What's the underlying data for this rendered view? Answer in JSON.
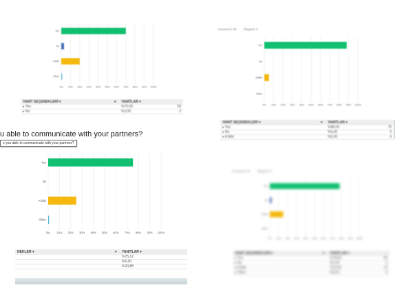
{
  "page": {
    "question_title": "u able to communicate with your partners?",
    "question_tooltip": "e you able to communicate with your partners?"
  },
  "panel_b_tabs": [
    "Answered: 85",
    "Skipped: 0"
  ],
  "panel_d_tabs": [
    "Answered: 84",
    "Skipped: 0"
  ],
  "colors": {
    "green": "#10c070",
    "blue": "#4a72b8",
    "yellow": "#f4b80e",
    "teal": "#5ab4d6",
    "grid": "#e9e9e9"
  },
  "chart_data": [
    {
      "type": "bar",
      "orientation": "horizontal",
      "categories": [
        "Yes",
        "No",
        "A little",
        "Other"
      ],
      "values": [
        70,
        3,
        20,
        1
      ],
      "xlim": [
        0,
        100
      ],
      "ticks": [
        "0%",
        "10%",
        "20%",
        "30%",
        "40%",
        "50%",
        "60%",
        "70%",
        "80%",
        "90%",
        "100%"
      ],
      "bar_colors": [
        "#10c070",
        "#4a72b8",
        "#f4b80e",
        "#5ab4d6"
      ]
    },
    {
      "type": "bar",
      "orientation": "horizontal",
      "categories": [
        "Yes",
        "No",
        "A little",
        "Other"
      ],
      "values": [
        88,
        0,
        5,
        0
      ],
      "xlim": [
        0,
        100
      ],
      "ticks": [
        "0%",
        "10%",
        "20%",
        "30%",
        "40%",
        "50%",
        "60%",
        "70%",
        "80%",
        "90%",
        "100%"
      ],
      "bar_colors": [
        "#10c070",
        "#4a72b8",
        "#f4b80e",
        "#5ab4d6"
      ]
    },
    {
      "type": "bar",
      "orientation": "horizontal",
      "categories": [
        "Yes",
        "No",
        "A little",
        "Other"
      ],
      "values": [
        75.12,
        0,
        24.88,
        0.8
      ],
      "xlim": [
        0,
        100
      ],
      "ticks": [
        "0%",
        "10%",
        "20%",
        "30%",
        "40%",
        "50%",
        "60%",
        "70%",
        "80%",
        "90%",
        "100%"
      ],
      "bar_colors": [
        "#10c070",
        "#4a72b8",
        "#f4b80e",
        "#5ab4d6"
      ]
    },
    {
      "type": "bar",
      "orientation": "horizontal",
      "categories": [
        "Yes",
        "No",
        "A little",
        "Other"
      ],
      "values": [
        78,
        2,
        15,
        0
      ],
      "xlim": [
        0,
        100
      ],
      "ticks": [
        "0%",
        "10%",
        "20%",
        "30%",
        "40%",
        "50%",
        "60%",
        "70%",
        "80%",
        "90%",
        "100%"
      ],
      "bar_colors": [
        "#10c070",
        "#4a72b8",
        "#f4b80e",
        "#5ab4d6"
      ]
    }
  ],
  "tables": [
    {
      "headers": [
        "YANIT SEÇENEKLERİ",
        "YANITLAR"
      ],
      "rows": [
        {
          "label": "Yes",
          "value": "%70,00",
          "count": "59"
        },
        {
          "label": "No",
          "value": "%3,00",
          "count": "3"
        }
      ]
    },
    {
      "headers": [
        "YANIT SEÇENEKLERİ",
        "YANITLAR"
      ],
      "rows": [
        {
          "label": "Yes",
          "value": "%88,00",
          "count": "75"
        },
        {
          "label": "No",
          "value": "%0,00",
          "count": "0"
        },
        {
          "label": "A little",
          "value": "%5,00",
          "count": "4"
        }
      ]
    },
    {
      "headers": [
        "NEKLER",
        "YANITLAR"
      ],
      "rows": [
        {
          "label": "",
          "value": "%75,12",
          "count": ""
        },
        {
          "label": "",
          "value": "%0,00",
          "count": ""
        },
        {
          "label": "",
          "value": "%24,88",
          "count": ""
        }
      ]
    },
    {
      "headers": [
        "YANIT SEÇENEKLERİ",
        "YANITLAR"
      ],
      "rows": [
        {
          "label": "Yes",
          "value": "%78,00",
          "count": "66"
        },
        {
          "label": "No",
          "value": "%2,00",
          "count": "2"
        },
        {
          "label": "A little",
          "value": "%15,00",
          "count": "13"
        },
        {
          "label": "Other",
          "value": "%0,00",
          "count": "0"
        }
      ]
    }
  ]
}
